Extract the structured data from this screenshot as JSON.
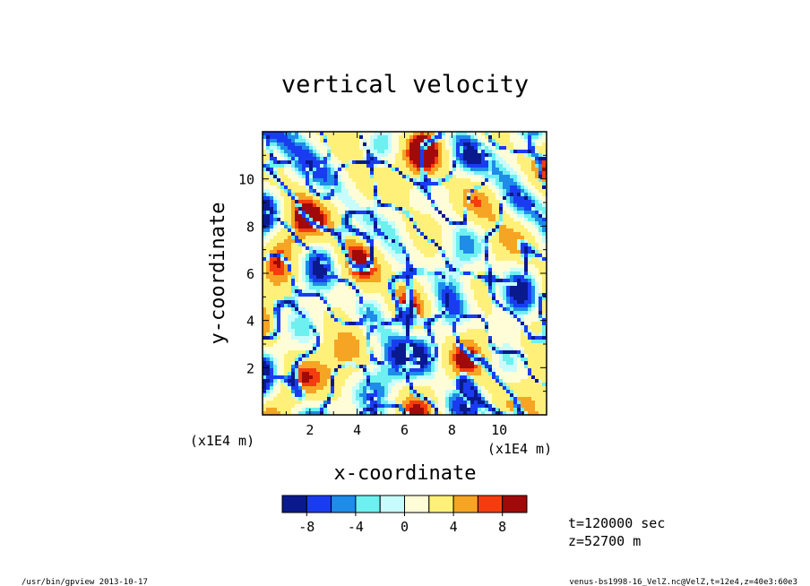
{
  "chart_data": {
    "type": "heatmap",
    "title": "vertical velocity",
    "xlabel": "x-coordinate",
    "ylabel": "y-coordinate",
    "x_unit_label": "(x1E4 m)",
    "y_unit_label": "(x1E4 m)",
    "xlim": [
      0,
      12
    ],
    "ylim": [
      0,
      12
    ],
    "x_ticks": [
      2,
      4,
      6,
      8,
      10
    ],
    "y_ticks": [
      2,
      4,
      6,
      8,
      10
    ],
    "colorbar": {
      "levels": [
        -10,
        -8,
        -6,
        -4,
        -2,
        0,
        2,
        4,
        6,
        8,
        10
      ],
      "colors": [
        "#0a1a8c",
        "#1a3cf0",
        "#1e8ce8",
        "#6ef0f0",
        "#c8fcfc",
        "#fffdd8",
        "#fff07a",
        "#f5a523",
        "#f53c0f",
        "#a00a0a"
      ],
      "tick_labels": [
        "-8",
        "-4",
        "0",
        "4",
        "8"
      ],
      "tick_values": [
        -8,
        -4,
        0,
        4,
        8
      ]
    },
    "annotations": {
      "time": "t=120000 sec",
      "height": "z=52700 m"
    }
  },
  "footer": {
    "left": "/usr/bin/gpview   2013-10-17",
    "right": "venus-bs1998-16_VelZ.nc@VelZ,t=12e4,z=40e3:60e3"
  }
}
